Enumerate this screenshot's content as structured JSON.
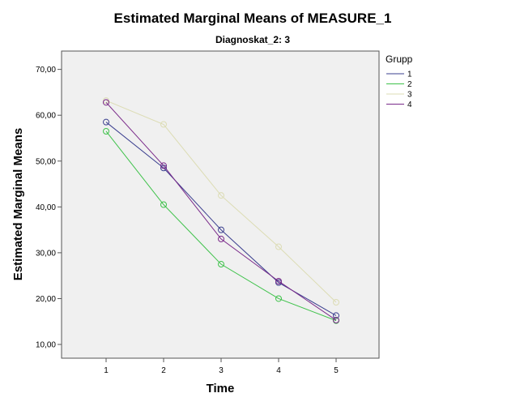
{
  "chart_data": {
    "type": "line",
    "title": "Estimated Marginal Means of MEASURE_1",
    "subtitle": "Diagnoskat_2: 3",
    "xlabel": "Time",
    "ylabel": "Estimated Marginal Means",
    "categories": [
      "1",
      "2",
      "3",
      "4",
      "5"
    ],
    "ylim": [
      7,
      74
    ],
    "yticks": [
      10,
      20,
      30,
      40,
      50,
      60,
      70
    ],
    "ytick_labels": [
      "10,00",
      "20,00",
      "30,00",
      "40,00",
      "50,00",
      "60,00",
      "70,00"
    ],
    "grid": false,
    "legend_title": "Grupp",
    "legend_position": "right",
    "series": [
      {
        "name": "1",
        "color": "#3b3f8f",
        "values": [
          58.5,
          48.5,
          35.0,
          23.5,
          16.3
        ]
      },
      {
        "name": "2",
        "color": "#3ec24a",
        "values": [
          56.5,
          40.5,
          27.5,
          20.0,
          15.2
        ]
      },
      {
        "name": "3",
        "color": "#dcdcb4",
        "values": [
          63.2,
          58.0,
          42.5,
          31.3,
          19.2
        ]
      },
      {
        "name": "4",
        "color": "#7a2a8a",
        "values": [
          62.8,
          49.0,
          33.0,
          23.8,
          15.3
        ]
      }
    ]
  }
}
